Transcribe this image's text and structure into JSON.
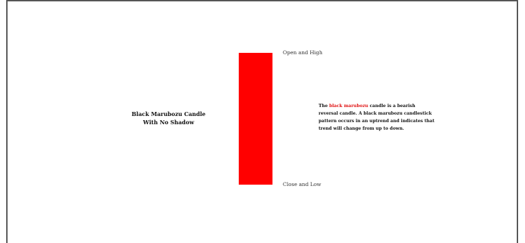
{
  "title_lines": [
    "Black Marubozu Candle",
    "With No Shadow"
  ],
  "candle": {
    "color": "#ff0000"
  },
  "labels": {
    "top": "Open and High",
    "bottom": "Close and Low"
  },
  "description": {
    "prefix": "The ",
    "highlight": "black marubozu",
    "line1_rest": " candle is a bearish",
    "line2": "reversal candle. A black marubozu candlestick",
    "line3": "pattern occurs in an uptrend and indicates that",
    "line4": "trend will change from up to down.",
    "highlight_color": "#e01010"
  }
}
